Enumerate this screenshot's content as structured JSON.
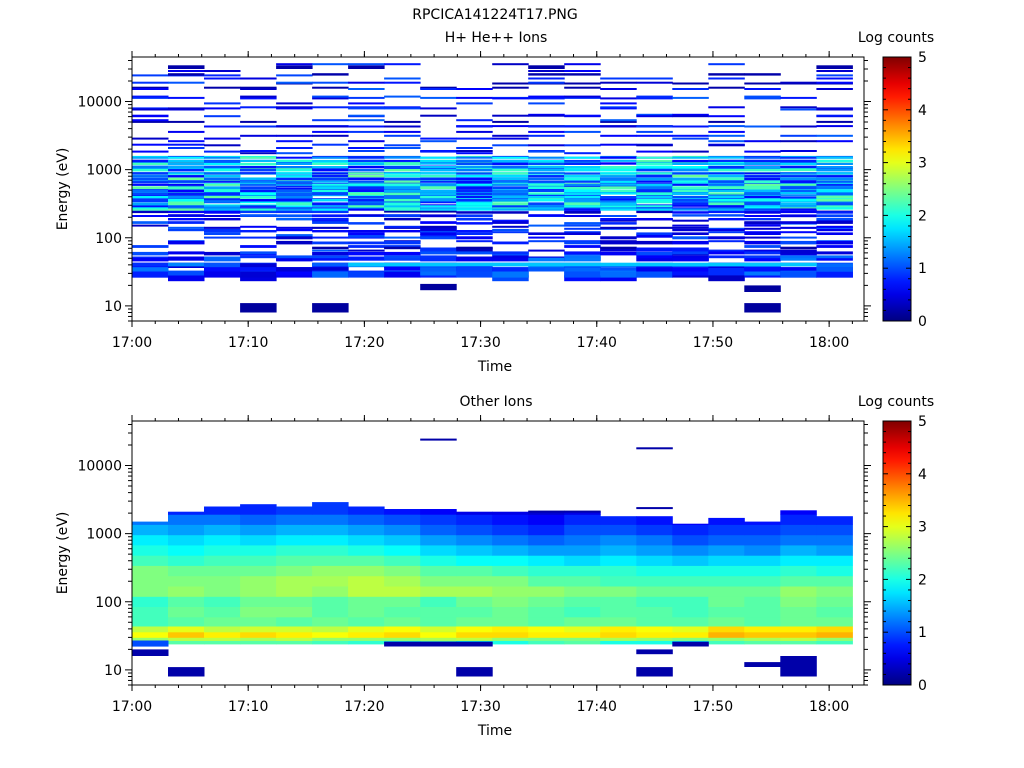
{
  "figure": {
    "title": "RPCICA141224T17.PNG"
  },
  "colormap": [
    "#000080",
    "#0000ff",
    "#00ffff",
    "#ffff00",
    "#ff0000",
    "#800000"
  ],
  "chart_data": [
    {
      "type": "heatmap",
      "title": "H+ He++ Ions",
      "xlabel": "Time",
      "ylabel": "Energy (eV)",
      "colorbar_label": "Log counts",
      "y_scale": "log",
      "xlim": [
        "17:00",
        "18:03"
      ],
      "ylim": [
        6,
        45000
      ],
      "x_ticks": [
        "17:00",
        "17:10",
        "17:20",
        "17:30",
        "17:40",
        "17:50",
        "18:00"
      ],
      "y_ticks": [
        10,
        100,
        1000,
        10000
      ],
      "y_tick_labels": [
        "10",
        "100",
        "1000",
        "10000"
      ],
      "clim": [
        0,
        5
      ],
      "cbar_ticks": [
        0,
        1,
        2,
        3,
        4,
        5
      ],
      "cbar_tick_labels": [
        "0",
        "1",
        "2",
        "3",
        "4",
        "5"
      ],
      "time_bins_start": [
        "17:00",
        "17:03",
        "17:06",
        "17:10",
        "17:13",
        "17:16",
        "17:19",
        "17:22",
        "17:25",
        "17:29",
        "17:32",
        "17:35",
        "17:38",
        "17:42",
        "17:45",
        "17:48",
        "17:51",
        "17:54",
        "17:58",
        "18:01"
      ],
      "cells": [
        [
          1,
          26,
          37
        ],
        [
          1,
          36,
          43
        ],
        [
          1,
          46,
          53
        ],
        [
          1,
          55,
          62
        ],
        [
          1,
          63,
          67
        ],
        [
          2,
          71,
          78
        ],
        [
          2,
          86,
          92
        ],
        [
          1,
          99,
          104
        ],
        [
          1,
          118,
          125
        ],
        [
          1,
          135,
          140
        ],
        [
          1,
          148,
          156
        ],
        [
          1,
          175,
          184
        ],
        [
          1,
          205,
          216
        ],
        [
          0,
          240,
          250
        ],
        [
          1,
          268,
          276
        ],
        [
          1,
          276,
          288
        ],
        [
          2,
          343,
          356
        ],
        [
          1,
          370,
          380
        ],
        [
          1,
          390,
          404
        ],
        [
          1,
          420,
          436
        ],
        [
          1,
          450,
          470
        ],
        [
          1,
          530,
          545
        ],
        [
          1,
          575,
          589
        ],
        [
          1,
          620,
          635
        ],
        [
          0,
          690,
          702
        ],
        [
          1,
          752,
          770
        ],
        [
          1,
          870,
          900
        ],
        [
          1,
          1050,
          1090
        ],
        [
          1,
          1290,
          1330
        ],
        [
          1,
          1530,
          1590
        ],
        [
          1,
          1880,
          1940
        ],
        [
          1,
          2330,
          2400
        ],
        [
          1,
          4300,
          4500
        ],
        [
          1,
          6350,
          6600
        ],
        [
          1,
          8000,
          8500
        ],
        [
          1,
          11000,
          11700
        ],
        [
          0,
          15500,
          16500
        ],
        [
          1,
          23500,
          25000
        ],
        [
          0,
          30000,
          34000
        ],
        [
          2,
          23,
          28
        ],
        [
          0,
          28,
          33
        ],
        [
          2,
          33,
          37
        ],
        [
          2,
          37,
          42
        ],
        [
          1,
          45,
          51
        ],
        [
          1,
          55,
          62
        ],
        [
          1,
          63,
          72
        ],
        [
          1,
          80,
          90
        ],
        [
          1,
          100,
          113
        ],
        [
          1,
          120,
          130
        ],
        [
          1,
          135,
          145
        ],
        [
          1,
          156,
          170
        ],
        [
          1,
          180,
          195
        ],
        [
          1,
          205,
          222
        ],
        [
          1,
          230,
          250
        ],
        [
          1,
          260,
          280
        ],
        [
          1,
          285,
          310
        ],
        [
          1,
          320,
          345
        ],
        [
          1,
          350,
          380
        ],
        [
          1,
          390,
          420
        ],
        [
          2,
          430,
          465
        ],
        [
          1,
          470,
          510
        ],
        [
          1,
          520,
          560
        ],
        [
          1,
          580,
          620
        ],
        [
          1,
          630,
          680
        ],
        [
          1,
          700,
          760
        ],
        [
          1,
          780,
          840
        ],
        [
          2,
          860,
          920
        ],
        [
          2,
          950,
          1030
        ],
        [
          1,
          1060,
          1150
        ],
        [
          2,
          1180,
          1280
        ],
        [
          2,
          1300,
          1400
        ],
        [
          1,
          1450,
          1550
        ],
        [
          1,
          1700,
          1800
        ],
        [
          1,
          2050,
          2150
        ],
        [
          1,
          2600,
          2700
        ],
        [
          1,
          3100,
          3250
        ],
        [
          1,
          4300,
          4450
        ],
        [
          0,
          5000,
          5200
        ],
        [
          1,
          6000,
          6300
        ],
        [
          1,
          7800,
          8200
        ],
        [
          1,
          11000,
          11500
        ],
        [
          0,
          18000,
          19000
        ],
        [
          0,
          24000,
          26000
        ],
        [
          2,
          26,
          32
        ],
        [
          1,
          32,
          37
        ],
        [
          1,
          38,
          43
        ],
        [
          1,
          50,
          55
        ],
        [
          1,
          57,
          63
        ],
        [
          0,
          68,
          74
        ],
        [
          1,
          80,
          88
        ],
        [
          1,
          95,
          105
        ],
        [
          1,
          110,
          120
        ],
        [
          1,
          125,
          135
        ],
        [
          1,
          140,
          150
        ],
        [
          1,
          160,
          175
        ],
        [
          2,
          180,
          195
        ],
        [
          1,
          200,
          220
        ],
        [
          1,
          225,
          245
        ],
        [
          1,
          250,
          270
        ],
        [
          1,
          280,
          300
        ],
        [
          1,
          300,
          330
        ],
        [
          2,
          340,
          370
        ],
        [
          1,
          380,
          410
        ],
        [
          2,
          420,
          460
        ],
        [
          1,
          470,
          510
        ],
        [
          2,
          520,
          570
        ],
        [
          2,
          580,
          620
        ],
        [
          2,
          640,
          690
        ],
        [
          2,
          700,
          760
        ],
        [
          1,
          770,
          830
        ],
        [
          2,
          850,
          910
        ],
        [
          2,
          940,
          1020
        ],
        [
          1,
          1050,
          1130
        ],
        [
          2,
          1170,
          1260
        ],
        [
          2,
          1300,
          1390
        ],
        [
          1,
          1450,
          1550
        ],
        [
          1,
          1800,
          1900
        ],
        [
          1,
          2200,
          2350
        ],
        [
          1,
          2800,
          2950
        ],
        [
          1,
          3500,
          3700
        ],
        [
          1,
          4200,
          4450
        ],
        [
          1,
          5200,
          5500
        ],
        [
          1,
          6000,
          6400
        ],
        [
          1,
          7500,
          7900
        ],
        [
          1,
          9200,
          9700
        ],
        [
          1,
          11500,
          12200
        ],
        [
          1,
          15000,
          15800
        ],
        [
          1,
          18500,
          19500
        ],
        [
          1,
          21000,
          22500
        ],
        [
          1,
          27500,
          29000
        ],
        [
          1,
          34500,
          36500
        ]
      ],
      "highlight_channel_ev": [
        38,
        43
      ]
    },
    {
      "type": "heatmap",
      "title": "Other Ions",
      "xlabel": "Time",
      "ylabel": "Energy (eV)",
      "colorbar_label": "Log counts",
      "y_scale": "log",
      "xlim": [
        "17:00",
        "18:03"
      ],
      "ylim": [
        6,
        45000
      ],
      "x_ticks": [
        "17:00",
        "17:10",
        "17:20",
        "17:30",
        "17:40",
        "17:50",
        "18:00"
      ],
      "y_ticks": [
        10,
        100,
        1000,
        10000
      ],
      "y_tick_labels": [
        "10",
        "100",
        "1000",
        "10000"
      ],
      "clim": [
        0,
        5
      ],
      "cbar_ticks": [
        0,
        1,
        2,
        3,
        4,
        5
      ],
      "cbar_tick_labels": [
        "0",
        "1",
        "2",
        "3",
        "4",
        "5"
      ],
      "top_envelope_ev": [
        1500,
        2100,
        2500,
        2700,
        2500,
        2900,
        2500,
        2300,
        2300,
        2100,
        2100,
        2100,
        2100,
        1800,
        1800,
        1400,
        1700,
        1500,
        2200,
        1800
      ],
      "bands": [
        {
          "lo": 24,
          "hi": 27,
          "values": [
            2.2,
            2.3,
            2.3,
            2.3,
            2.3,
            2.2,
            2.1,
            2.0,
            2.2,
            1.9,
            2.0,
            2.2,
            2.3,
            2.0,
            2.0,
            1.9,
            2.2,
            2.3,
            2.3,
            2.2
          ]
        },
        {
          "lo": 27,
          "hi": 30,
          "values": [
            2.6,
            2.8,
            2.8,
            2.7,
            2.8,
            2.6,
            2.6,
            2.6,
            2.7,
            2.8,
            2.6,
            2.5,
            2.5,
            2.7,
            2.6,
            2.5,
            2.6,
            2.7,
            2.8,
            2.6
          ]
        },
        {
          "lo": 30,
          "hi": 36,
          "values": [
            3.1,
            3.4,
            3.2,
            3.3,
            3.2,
            3.1,
            3.2,
            3.3,
            3.1,
            3.3,
            3.3,
            3.2,
            3.2,
            3.3,
            3.2,
            3.2,
            3.5,
            3.4,
            3.4,
            3.5
          ]
        },
        {
          "lo": 36,
          "hi": 44,
          "values": [
            2.8,
            3.0,
            2.8,
            2.9,
            2.9,
            2.8,
            3.0,
            3.1,
            2.9,
            3.1,
            3.2,
            3.1,
            3.0,
            3.2,
            3.1,
            3.0,
            3.3,
            3.2,
            3.2,
            3.3
          ]
        },
        {
          "lo": 44,
          "hi": 60,
          "values": [
            2.2,
            2.3,
            2.4,
            2.4,
            2.3,
            2.4,
            2.3,
            2.4,
            2.3,
            2.4,
            2.4,
            2.3,
            2.4,
            2.4,
            2.3,
            2.3,
            2.4,
            2.3,
            2.4,
            2.4
          ]
        },
        {
          "lo": 60,
          "hi": 85,
          "values": [
            2.2,
            2.4,
            2.3,
            2.5,
            2.5,
            2.3,
            2.4,
            2.3,
            2.3,
            2.3,
            2.4,
            2.3,
            2.2,
            2.3,
            2.3,
            2.2,
            2.3,
            2.3,
            2.4,
            2.3
          ]
        },
        {
          "lo": 85,
          "hi": 120,
          "values": [
            2.1,
            2.3,
            2.2,
            2.4,
            2.4,
            2.3,
            2.4,
            2.4,
            2.2,
            2.4,
            2.5,
            2.4,
            2.3,
            2.3,
            2.2,
            2.2,
            2.4,
            2.3,
            2.5,
            2.4
          ]
        },
        {
          "lo": 120,
          "hi": 170,
          "values": [
            2.5,
            2.6,
            2.5,
            2.6,
            2.7,
            2.6,
            2.8,
            2.8,
            2.7,
            2.7,
            2.6,
            2.6,
            2.5,
            2.5,
            2.4,
            2.4,
            2.4,
            2.4,
            2.6,
            2.5
          ]
        },
        {
          "lo": 170,
          "hi": 240,
          "values": [
            2.5,
            2.5,
            2.5,
            2.6,
            2.7,
            2.7,
            2.8,
            2.7,
            2.5,
            2.5,
            2.5,
            2.3,
            2.3,
            2.2,
            2.2,
            2.2,
            2.2,
            2.2,
            2.3,
            2.3
          ]
        },
        {
          "lo": 240,
          "hi": 340,
          "values": [
            2.5,
            2.4,
            2.4,
            2.4,
            2.5,
            2.6,
            2.6,
            2.5,
            2.3,
            2.3,
            2.2,
            2.1,
            2.1,
            2.1,
            2.0,
            2.0,
            2.0,
            2.0,
            2.1,
            2.0
          ]
        },
        {
          "lo": 340,
          "hi": 480,
          "values": [
            2.2,
            2.1,
            2.2,
            2.2,
            2.3,
            2.3,
            2.3,
            2.2,
            2.0,
            1.9,
            1.9,
            1.8,
            1.7,
            1.8,
            1.7,
            1.6,
            1.7,
            1.7,
            1.8,
            1.8
          ]
        },
        {
          "lo": 480,
          "hi": 680,
          "values": [
            2.0,
            1.9,
            2.0,
            2.0,
            2.1,
            2.1,
            2.0,
            1.9,
            1.7,
            1.6,
            1.5,
            1.4,
            1.4,
            1.5,
            1.4,
            1.3,
            1.4,
            1.3,
            1.5,
            1.4
          ]
        },
        {
          "lo": 680,
          "hi": 960,
          "values": [
            1.8,
            1.7,
            1.8,
            1.7,
            1.8,
            1.8,
            1.7,
            1.6,
            1.4,
            1.3,
            1.2,
            1.1,
            1.2,
            1.3,
            1.2,
            1.0,
            1.1,
            1.1,
            1.2,
            1.2
          ]
        },
        {
          "lo": 960,
          "hi": 1360,
          "values": [
            1.5,
            1.4,
            1.5,
            1.4,
            1.5,
            1.5,
            1.4,
            1.3,
            1.1,
            1.0,
            0.9,
            0.8,
            1.0,
            1.0,
            0.9,
            0.8,
            0.9,
            0.9,
            1.0,
            1.0
          ]
        },
        {
          "lo": 1360,
          "hi": 1920,
          "values": [
            1.2,
            1.2,
            1.2,
            1.1,
            1.2,
            1.2,
            1.1,
            1.0,
            0.9,
            0.8,
            0.7,
            0.6,
            0.8,
            0.8,
            0.7,
            0.6,
            0.7,
            0.7,
            0.8,
            0.8
          ]
        },
        {
          "lo": 1920,
          "hi": 2900,
          "values": [
            0.9,
            0.8,
            0.8,
            0.8,
            0.9,
            0.9,
            0.8,
            0.7,
            0.6,
            0.5,
            0.5,
            0.4,
            0.5,
            0.5,
            0.5,
            0.4,
            0.5,
            0.5,
            0.6,
            0.5
          ]
        }
      ],
      "extra_cells": [
        [
          0,
          16,
          20,
          0
        ],
        [
          0,
          8,
          11,
          1
        ],
        [
          1,
          22,
          27,
          0
        ],
        [
          0,
          22,
          26,
          7
        ],
        [
          0,
          22,
          26,
          8
        ],
        [
          0,
          22,
          26,
          9
        ],
        [
          0,
          8,
          11,
          9
        ],
        [
          0,
          8,
          11,
          14
        ],
        [
          0,
          17,
          20,
          14
        ],
        [
          0,
          22,
          26,
          15
        ],
        [
          0,
          11,
          13,
          17
        ],
        [
          0,
          8,
          16,
          18
        ],
        [
          0,
          23500,
          24800,
          8
        ],
        [
          0,
          17500,
          18500,
          14
        ],
        [
          0,
          2300,
          2450,
          14
        ],
        [
          0,
          2050,
          2180,
          11
        ],
        [
          0,
          2050,
          2180,
          12
        ]
      ]
    }
  ],
  "layout_meta": {
    "cbar_mid_tick_count": 4
  }
}
